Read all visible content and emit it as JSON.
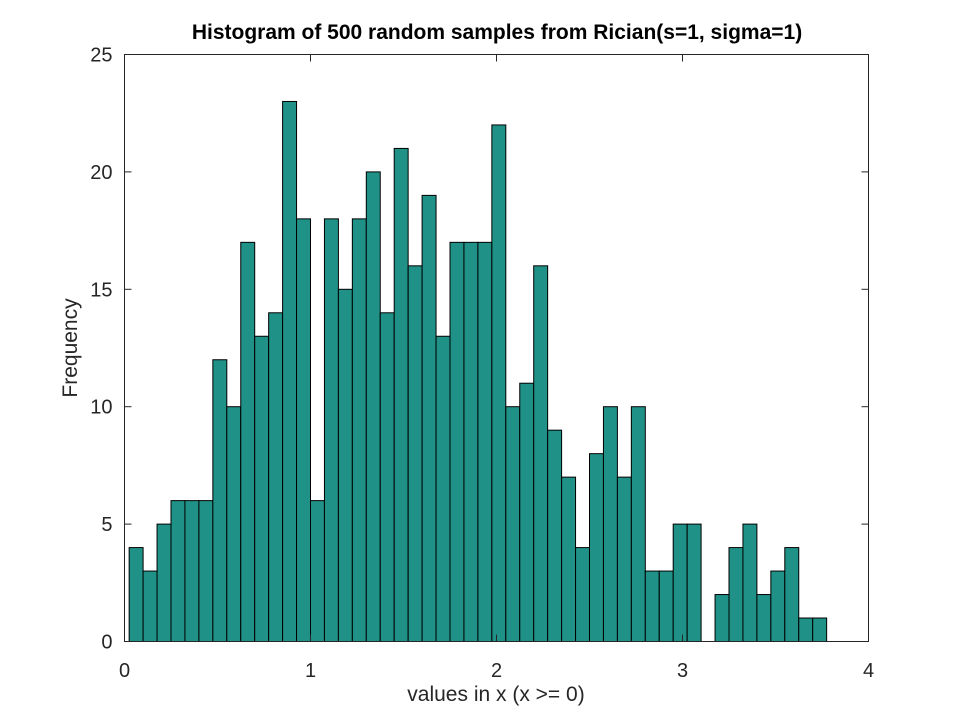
{
  "chart_data": {
    "type": "bar",
    "title": "Histogram of 500 random samples from Rician(s=1, sigma=1)",
    "xlabel": "values in x (x >= 0)",
    "ylabel": "Frequency",
    "xlim": [
      0,
      4
    ],
    "ylim": [
      0,
      25
    ],
    "xticks": [
      0,
      1,
      2,
      3,
      4
    ],
    "yticks": [
      0,
      5,
      10,
      15,
      20,
      25
    ],
    "grid": false,
    "bar_color": "#209187",
    "bin_start": 0.025,
    "bin_width": 0.075,
    "values": [
      4,
      3,
      5,
      6,
      6,
      6,
      12,
      10,
      17,
      13,
      14,
      23,
      18,
      6,
      18,
      15,
      18,
      20,
      14,
      21,
      16,
      19,
      13,
      17,
      17,
      17,
      22,
      10,
      11,
      16,
      9,
      7,
      4,
      8,
      10,
      7,
      10,
      3,
      3,
      5,
      5,
      0,
      2,
      4,
      5,
      2,
      3,
      4,
      1,
      1
    ]
  }
}
